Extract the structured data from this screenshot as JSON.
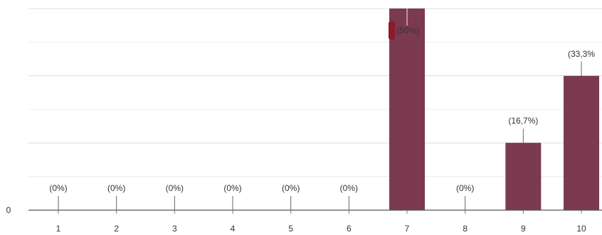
{
  "chart_data": {
    "type": "bar",
    "categories": [
      "1",
      "2",
      "3",
      "4",
      "5",
      "6",
      "7",
      "8",
      "9",
      "10"
    ],
    "values": [
      0,
      0,
      0,
      0,
      0,
      0,
      50,
      0,
      16.7,
      33.3
    ],
    "data_labels": [
      "(0%)",
      "(0%)",
      "(0%)",
      "(0%)",
      "(0%)",
      "(0%)",
      "(50%)",
      "(0%)",
      "(16,7%)",
      "(33,3%"
    ],
    "y_tick_labels": [
      "0"
    ],
    "ylim": [
      0,
      50
    ],
    "grid": true,
    "bar_color": "#7b3a4f",
    "highlight_color": "#8b1a2b"
  }
}
